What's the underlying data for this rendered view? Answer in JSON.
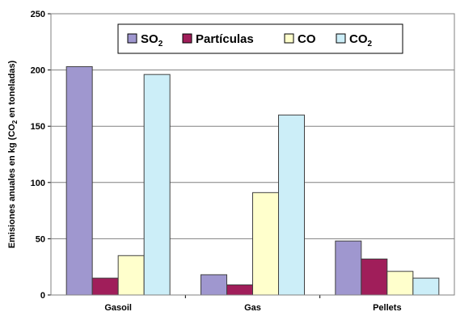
{
  "chart_data": {
    "type": "bar",
    "categories": [
      "Gasoil",
      "Gas",
      "Pellets"
    ],
    "series": [
      {
        "name": "SO2",
        "name_main": "SO",
        "name_sub": "2",
        "color": "#9F97CF",
        "values": [
          203,
          18,
          48
        ]
      },
      {
        "name": "Partículas",
        "name_main": "Partículas",
        "name_sub": "",
        "color": "#A01E5A",
        "values": [
          15,
          9,
          32
        ]
      },
      {
        "name": "CO",
        "name_main": "CO",
        "name_sub": "",
        "color": "#FFFFCC",
        "values": [
          35,
          91,
          21
        ]
      },
      {
        "name": "CO2",
        "name_main": "CO",
        "name_sub": "2",
        "color": "#CCEEF8",
        "values": [
          196,
          160,
          15
        ]
      }
    ],
    "ylabel_main": "Emisiones anuales en kg (CO",
    "ylabel_sub": "2",
    "ylabel_end": " en toneladas)",
    "ylim": [
      0,
      250
    ],
    "yticks": [
      0,
      50,
      100,
      150,
      200,
      250
    ],
    "grid": true,
    "legend_position": "top-center"
  }
}
